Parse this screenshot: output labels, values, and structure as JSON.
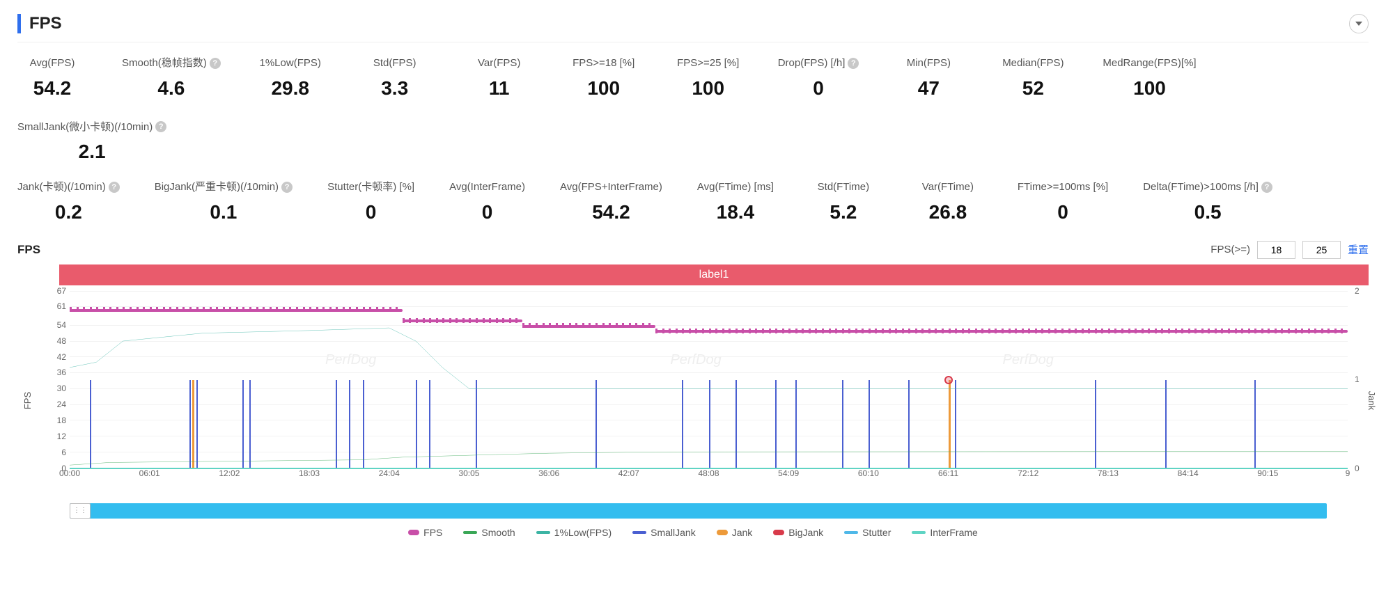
{
  "header": {
    "title": "FPS"
  },
  "metrics_row1": [
    {
      "label": "Avg(FPS)",
      "value": "54.2",
      "help": false
    },
    {
      "label": "Smooth(稳帧指数)",
      "value": "4.6",
      "help": true
    },
    {
      "label": "1%Low(FPS)",
      "value": "29.8",
      "help": false
    },
    {
      "label": "Std(FPS)",
      "value": "3.3",
      "help": false
    },
    {
      "label": "Var(FPS)",
      "value": "11",
      "help": false
    },
    {
      "label": "FPS>=18 [%]",
      "value": "100",
      "help": false
    },
    {
      "label": "FPS>=25 [%]",
      "value": "100",
      "help": false
    },
    {
      "label": "Drop(FPS) [/h]",
      "value": "0",
      "help": true
    },
    {
      "label": "Min(FPS)",
      "value": "47",
      "help": false
    },
    {
      "label": "Median(FPS)",
      "value": "52",
      "help": false
    },
    {
      "label": "MedRange(FPS)[%]",
      "value": "100",
      "help": false
    },
    {
      "label": "SmallJank(微小卡顿)(/10min)",
      "value": "2.1",
      "help": true
    }
  ],
  "metrics_row2": [
    {
      "label": "Jank(卡顿)(/10min)",
      "value": "0.2",
      "help": true
    },
    {
      "label": "BigJank(严重卡顿)(/10min)",
      "value": "0.1",
      "help": true
    },
    {
      "label": "Stutter(卡顿率) [%]",
      "value": "0",
      "help": false
    },
    {
      "label": "Avg(InterFrame)",
      "value": "0",
      "help": false
    },
    {
      "label": "Avg(FPS+InterFrame)",
      "value": "54.2",
      "help": false
    },
    {
      "label": "Avg(FTime) [ms]",
      "value": "18.4",
      "help": false
    },
    {
      "label": "Std(FTime)",
      "value": "5.2",
      "help": false
    },
    {
      "label": "Var(FTime)",
      "value": "26.8",
      "help": false
    },
    {
      "label": "FTime>=100ms [%]",
      "value": "0",
      "help": false
    },
    {
      "label": "Delta(FTime)>100ms [/h]",
      "value": "0.5",
      "help": true
    }
  ],
  "chart": {
    "title": "FPS",
    "threshold_label": "FPS(>=)",
    "threshold1": "18",
    "threshold2": "25",
    "reset": "重置",
    "banner": "label1",
    "y_left_label": "FPS",
    "y_right_label": "Jank",
    "y_left_ticks": [
      67,
      61,
      54,
      48,
      42,
      36,
      30,
      24,
      18,
      12,
      6,
      0
    ],
    "y_left_min": 0,
    "y_left_max": 67,
    "y_right_ticks": [
      2,
      1,
      0
    ],
    "y_right_min": 0,
    "y_right_max": 2,
    "x_ticks": [
      "00:00",
      "06:01",
      "12:02",
      "18:03",
      "24:04",
      "30:05",
      "36:06",
      "42:07",
      "48:08",
      "54:09",
      "60:10",
      "66:11",
      "72:12",
      "78:13",
      "84:14",
      "90:15",
      "9"
    ],
    "x_min": 0,
    "x_max": 96,
    "series": {
      "fps": {
        "color": "#c84fa8",
        "segments": [
          {
            "x0": 0,
            "x1": 25,
            "y": 60
          },
          {
            "x0": 25,
            "x1": 34,
            "y": 56
          },
          {
            "x0": 34,
            "x1": 44,
            "y": 54
          },
          {
            "x0": 44,
            "x1": 96,
            "y": 52
          }
        ]
      },
      "smooth": {
        "color": "#3aa757",
        "points": [
          {
            "x": 0,
            "y": 1
          },
          {
            "x": 3,
            "y": 2
          },
          {
            "x": 22,
            "y": 3
          },
          {
            "x": 25,
            "y": 4
          },
          {
            "x": 32,
            "y": 5
          },
          {
            "x": 36,
            "y": 5.5
          },
          {
            "x": 44,
            "y": 6
          },
          {
            "x": 96,
            "y": 6.2
          }
        ]
      },
      "onelow": {
        "color": "#3cb4a4",
        "points": [
          {
            "x": 0,
            "y": 38
          },
          {
            "x": 2,
            "y": 40
          },
          {
            "x": 4,
            "y": 48
          },
          {
            "x": 10,
            "y": 51
          },
          {
            "x": 18,
            "y": 52
          },
          {
            "x": 24,
            "y": 53
          },
          {
            "x": 26,
            "y": 48
          },
          {
            "x": 28,
            "y": 38
          },
          {
            "x": 30,
            "y": 30
          },
          {
            "x": 96,
            "y": 30
          }
        ]
      },
      "smalljank_spikes": {
        "color": "#4a5fd1",
        "xs": [
          1.5,
          9,
          9.5,
          13,
          13.5,
          20,
          21,
          22,
          26,
          27,
          30.5,
          39.5,
          46,
          48,
          50,
          53,
          54.5,
          58,
          60,
          63,
          66.5,
          77,
          82.3,
          89
        ]
      },
      "jank_spikes": {
        "color": "#ed9a3a",
        "xs": [
          9.2,
          66.0
        ]
      },
      "stutter_spikes": {
        "color": "#4fb8e8",
        "xs": []
      },
      "bigjank_marker": {
        "x": 66.0,
        "y": 33,
        "color": "#d83a4a"
      },
      "interframe": {
        "color": "#5fd4c4",
        "y": 0
      }
    },
    "legend": [
      {
        "label": "FPS",
        "color": "#c84fa8",
        "style": "dot"
      },
      {
        "label": "Smooth",
        "color": "#3aa757",
        "style": "line"
      },
      {
        "label": "1%Low(FPS)",
        "color": "#3cb4a4",
        "style": "line"
      },
      {
        "label": "SmallJank",
        "color": "#4a5fd1",
        "style": "line"
      },
      {
        "label": "Jank",
        "color": "#ed9a3a",
        "style": "dot"
      },
      {
        "label": "BigJank",
        "color": "#d83a4a",
        "style": "dot"
      },
      {
        "label": "Stutter",
        "color": "#4fb8e8",
        "style": "line"
      },
      {
        "label": "InterFrame",
        "color": "#5fd4c4",
        "style": "line"
      }
    ],
    "watermark": "PerfDog"
  }
}
